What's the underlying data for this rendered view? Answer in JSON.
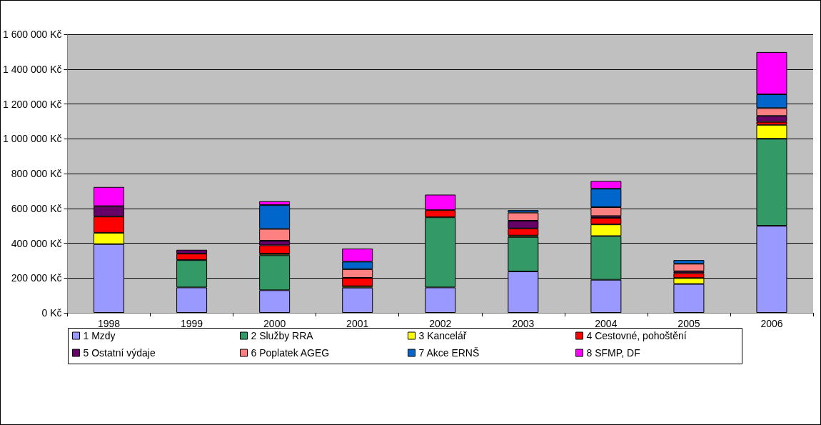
{
  "chart_data": {
    "type": "bar",
    "stacked": true,
    "categories": [
      "1998",
      "1999",
      "2000",
      "2001",
      "2002",
      "2003",
      "2004",
      "2005",
      "2006"
    ],
    "series": [
      {
        "name": "1 Mzdy",
        "color": "#9999ff",
        "values": [
          395000,
          146000,
          130000,
          145000,
          146000,
          238000,
          190000,
          166000,
          500000
        ]
      },
      {
        "name": "2 Služby RRA",
        "color": "#339966",
        "values": [
          null,
          157000,
          201000,
          null,
          403000,
          198000,
          251000,
          null,
          500000
        ]
      },
      {
        "name": "3 Kancelář",
        "color": "#ffff00",
        "values": [
          65000,
          null,
          9000,
          8000,
          null,
          8000,
          67000,
          34000,
          80000
        ]
      },
      {
        "name": "4 Cestovné, pohoštění",
        "color": "#ff0000",
        "values": [
          93000,
          37000,
          48000,
          48000,
          41000,
          41000,
          37000,
          28000,
          17000
        ]
      },
      {
        "name": "5 Ostatní výdaje",
        "color": "#660066",
        "values": [
          60000,
          22000,
          26000,
          null,
          null,
          44000,
          11000,
          11000,
          34000
        ]
      },
      {
        "name": "6 Poplatek AGEG",
        "color": "#ff8080",
        "values": [
          null,
          null,
          68000,
          50000,
          null,
          47000,
          51000,
          43000,
          45000
        ]
      },
      {
        "name": "7 Akce ERNŠ",
        "color": "#0066cc",
        "values": [
          null,
          null,
          137000,
          43000,
          null,
          14000,
          106000,
          21000,
          79000
        ]
      },
      {
        "name": "8 SFMP, DF",
        "color": "#ff00ff",
        "values": [
          110000,
          null,
          22000,
          75000,
          89000,
          null,
          44000,
          null,
          243000
        ]
      }
    ],
    "ylim": [
      0,
      1600000
    ],
    "yticks": [
      {
        "value": 0,
        "label": "0 Kč"
      },
      {
        "value": 200000,
        "label": "200 000 Kč"
      },
      {
        "value": 400000,
        "label": "400 000 Kč"
      },
      {
        "value": 600000,
        "label": "600 000 Kč"
      },
      {
        "value": 800000,
        "label": "800 000 Kč"
      },
      {
        "value": 1000000,
        "label": "1 000 000 Kč"
      },
      {
        "value": 1200000,
        "label": "1 200 000 Kč"
      },
      {
        "value": 1400000,
        "label": "1 400 000 Kč"
      },
      {
        "value": 1600000,
        "label": "1 600 000 Kč"
      }
    ],
    "grid": "y",
    "legend": "bottom"
  }
}
